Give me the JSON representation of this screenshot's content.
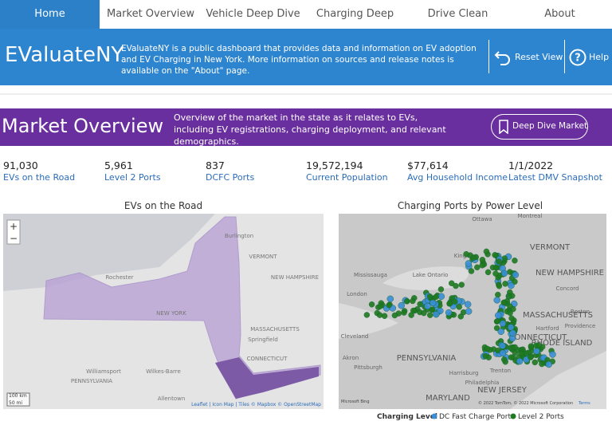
{
  "nav": {
    "tabs": [
      "Home",
      "Market Overview",
      "Vehicle Deep Dive",
      "Charging Deep Dive",
      "Drive Clean Rebate",
      "About"
    ]
  },
  "header": {
    "title": "EValuateNY",
    "description": "EValuateNY is a public dashboard that provides data and information on EV adoption and EV Charging in New York. More information on sources and release notes is available on the \"About\" page.",
    "reset": "Reset View",
    "help": "Help"
  },
  "banner": {
    "title": "Market Overview",
    "description": "Overview of the market in the state as it relates to EVs, including EV registrations, charging deployment, and relevant demographics.",
    "button": "Deep Dive Market"
  },
  "kpis": [
    {
      "value": "91,030",
      "label": "EVs on the Road"
    },
    {
      "value": "5,961",
      "label": "Level 2 Ports"
    },
    {
      "value": "837",
      "label": "DCFC Ports"
    },
    {
      "value": "19,572,194",
      "label": "Current Population"
    },
    {
      "value": "$77,614",
      "label": "Avg Household Income"
    },
    {
      "value": "1/1/2022",
      "label": "Latest DMV Snapshot"
    }
  ],
  "left_map": {
    "title": "EVs on the Road",
    "controls": [
      "+",
      "−"
    ],
    "labels": [
      "Burlington",
      "VERMONT",
      "NEW HAMPSHIRE",
      "NEW YORK",
      "MASSACHUSETTS",
      "Springfield",
      "CONNECTICUT",
      "Williamsport",
      "Wilkes-Barre",
      "PENNSYLVANIA",
      "Allentown",
      "Rochester"
    ],
    "scale": [
      "100 km",
      "50 mi"
    ],
    "attribution": "Leaflet | Icon Map | Tiles © Mapbox © OpenStreetMap"
  },
  "right_map": {
    "title": "Charging Ports by Power Level",
    "labels": [
      "Ottawa",
      "Montreal",
      "VERMONT",
      "NEW HAMPSHIRE",
      "Mississauga",
      "Lake Ontario",
      "Kingston",
      "London",
      "Concord",
      "Boston",
      "MASSACHUSETTS",
      "Hartford",
      "Providence",
      "CONNECTICUT",
      "RHODE ISLAND",
      "Cleveland",
      "PENNSYLVANIA",
      "Akron",
      "Pittsburgh",
      "Harrisburg",
      "Philadelphia",
      "Trenton",
      "NEW JERSEY",
      "MARYLAND"
    ],
    "logo": "Microsoft Bing",
    "attribution": "© 2022 TomTom, © 2022 Microsoft Corporation",
    "terms": "Terms"
  },
  "legend": {
    "title": "Charging Level",
    "items": [
      {
        "name": "DC Fast Charge Ports",
        "color": "#3b8fd8"
      },
      {
        "name": "Level 2 Ports",
        "color": "#1f7a1f"
      }
    ]
  }
}
